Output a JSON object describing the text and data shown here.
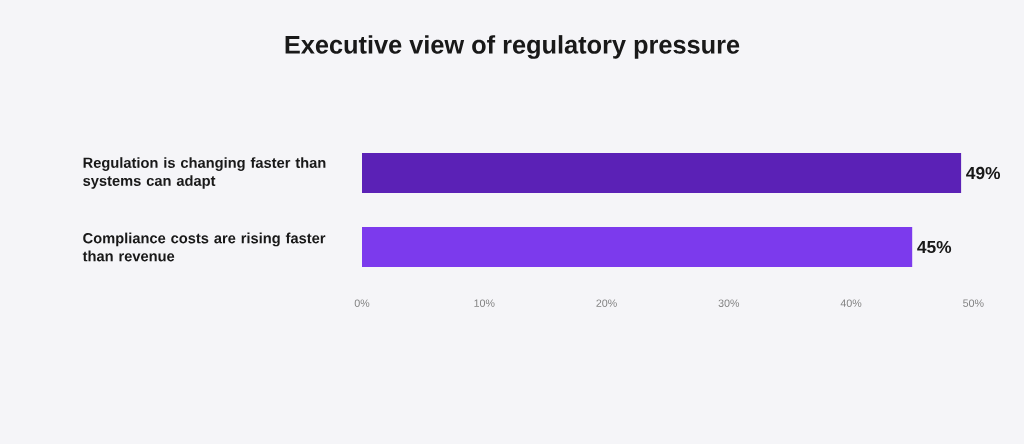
{
  "chart_data": {
    "type": "bar",
    "orientation": "horizontal",
    "title": "Executive view of regulatory pressure",
    "categories": [
      "Regulation is changing faster than systems can adapt",
      "Compliance costs are rising faster than revenue"
    ],
    "values": [
      49,
      45
    ],
    "colors": [
      "#5b21b6",
      "#7c3aed"
    ],
    "value_labels": [
      "49%",
      "45%"
    ],
    "xlim": [
      0,
      50
    ],
    "xticks": [
      {
        "value": 0,
        "label": "0%"
      },
      {
        "value": 10,
        "label": "10%"
      },
      {
        "value": 20,
        "label": "20%"
      },
      {
        "value": 30,
        "label": "30%"
      },
      {
        "value": 40,
        "label": "40%"
      },
      {
        "value": 50,
        "label": "50%"
      }
    ],
    "grid": false
  }
}
